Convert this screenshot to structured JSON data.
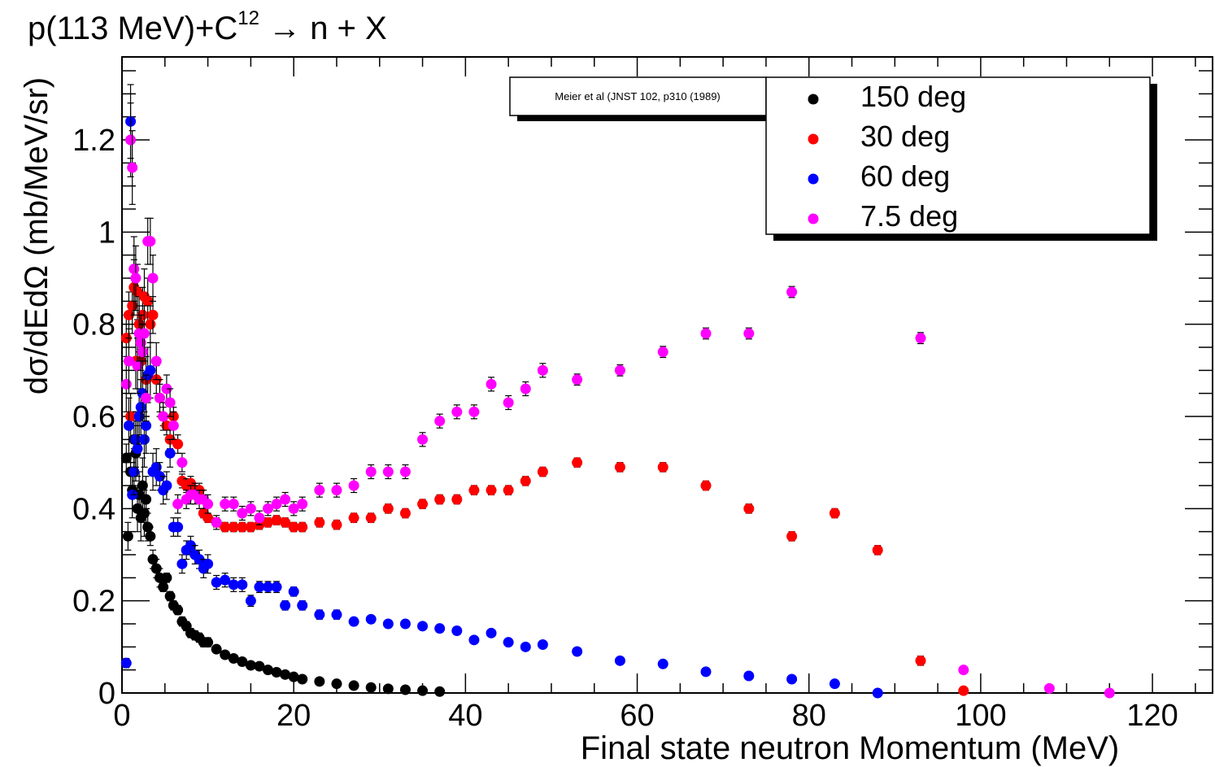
{
  "chart_data": {
    "type": "scatter",
    "title": "p(113 MeV)+C",
    "title_sup": "12",
    "title_tail": " → n + X",
    "xlabel": "Final state neutron Momentum (MeV)",
    "ylabel": "dσ/dEdΩ (mb/MeV/sr)",
    "xlim": [
      0,
      127
    ],
    "ylim": [
      0,
      1.38
    ],
    "x_ticks": [
      0,
      20,
      40,
      60,
      80,
      100,
      120
    ],
    "y_ticks": [
      0,
      0.2,
      0.4,
      0.6,
      0.8,
      1,
      1.2
    ],
    "x_tick_labels": [
      "0",
      "20",
      "40",
      "60",
      "80",
      "100",
      "120"
    ],
    "y_tick_labels": [
      "0",
      "0.2",
      "0.4",
      "0.6",
      "0.8",
      "1",
      "1.2"
    ],
    "reference": "Meier et al (JNST 102, p310 (1989)",
    "legend_position": "top-right",
    "series": [
      {
        "name": "150 deg",
        "color": "#000000",
        "points": [
          [
            0.5,
            0.51
          ],
          [
            0.7,
            0.34
          ],
          [
            1.0,
            0.48
          ],
          [
            1.2,
            0.44
          ],
          [
            1.4,
            0.55
          ],
          [
            1.6,
            0.52
          ],
          [
            1.8,
            0.4
          ],
          [
            2.0,
            0.43
          ],
          [
            2.2,
            0.38
          ],
          [
            2.4,
            0.45
          ],
          [
            2.6,
            0.39
          ],
          [
            2.8,
            0.42
          ],
          [
            3.0,
            0.36
          ],
          [
            3.3,
            0.34
          ],
          [
            3.6,
            0.29
          ],
          [
            4.0,
            0.27
          ],
          [
            4.4,
            0.25
          ],
          [
            4.8,
            0.23
          ],
          [
            5.2,
            0.25
          ],
          [
            5.6,
            0.21
          ],
          [
            6.0,
            0.19
          ],
          [
            6.5,
            0.18
          ],
          [
            7.0,
            0.155
          ],
          [
            7.5,
            0.145
          ],
          [
            8.0,
            0.13
          ],
          [
            8.5,
            0.125
          ],
          [
            9.0,
            0.12
          ],
          [
            9.5,
            0.11
          ],
          [
            10.0,
            0.11
          ],
          [
            11,
            0.095
          ],
          [
            12,
            0.083
          ],
          [
            13,
            0.075
          ],
          [
            14,
            0.068
          ],
          [
            15,
            0.06
          ],
          [
            16,
            0.058
          ],
          [
            17,
            0.05
          ],
          [
            18,
            0.045
          ],
          [
            19,
            0.04
          ],
          [
            20,
            0.035
          ],
          [
            21,
            0.03
          ],
          [
            23,
            0.025
          ],
          [
            25,
            0.02
          ],
          [
            27,
            0.016
          ],
          [
            29,
            0.012
          ],
          [
            31,
            0.009
          ],
          [
            33,
            0.007
          ],
          [
            35,
            0.005
          ],
          [
            37,
            0.003
          ]
        ],
        "errors": [
          0.03,
          0.03,
          0.04,
          0.04,
          0.06,
          0.06,
          0.05,
          0.05,
          0.05,
          0.06,
          0.05,
          0.05,
          0.03,
          0.02,
          0.02,
          0.02,
          0.02,
          0.01,
          0.01,
          0.01,
          0.01,
          0.01,
          0.01,
          0.01,
          0.01,
          0.01,
          0.01,
          0.01,
          0.01,
          0.005,
          0.005,
          0.005,
          0.005,
          0.005,
          0.005,
          0.005,
          0.005,
          0.005,
          0.005,
          0.005,
          0.003,
          0.003,
          0.003,
          0.003,
          0.003,
          0.003,
          0.003,
          0.003
        ]
      },
      {
        "name": "30 deg",
        "color": "#ff0000",
        "points": [
          [
            0.5,
            0.77
          ],
          [
            0.8,
            0.82
          ],
          [
            1.0,
            0.6
          ],
          [
            1.2,
            0.84
          ],
          [
            1.4,
            0.88
          ],
          [
            1.6,
            0.72
          ],
          [
            1.8,
            0.87
          ],
          [
            2.0,
            0.8
          ],
          [
            2.2,
            0.72
          ],
          [
            2.4,
            0.82
          ],
          [
            2.6,
            0.86
          ],
          [
            2.8,
            0.68
          ],
          [
            3.0,
            0.85
          ],
          [
            3.3,
            0.8
          ],
          [
            3.6,
            0.82
          ],
          [
            4.0,
            0.68
          ],
          [
            4.4,
            0.64
          ],
          [
            4.8,
            0.6
          ],
          [
            5.2,
            0.58
          ],
          [
            5.6,
            0.55
          ],
          [
            6.0,
            0.6
          ],
          [
            6.5,
            0.54
          ],
          [
            7.0,
            0.46
          ],
          [
            7.5,
            0.45
          ],
          [
            8.0,
            0.455
          ],
          [
            8.5,
            0.44
          ],
          [
            9.0,
            0.44
          ],
          [
            9.5,
            0.39
          ],
          [
            10.0,
            0.38
          ],
          [
            11,
            0.37
          ],
          [
            12,
            0.36
          ],
          [
            13,
            0.36
          ],
          [
            14,
            0.36
          ],
          [
            15,
            0.36
          ],
          [
            16,
            0.365
          ],
          [
            17,
            0.37
          ],
          [
            18,
            0.375
          ],
          [
            19,
            0.37
          ],
          [
            20,
            0.36
          ],
          [
            21,
            0.36
          ],
          [
            23,
            0.37
          ],
          [
            25,
            0.365
          ],
          [
            27,
            0.38
          ],
          [
            29,
            0.38
          ],
          [
            31,
            0.4
          ],
          [
            33,
            0.39
          ],
          [
            35,
            0.41
          ],
          [
            37,
            0.42
          ],
          [
            39,
            0.42
          ],
          [
            41,
            0.44
          ],
          [
            43,
            0.44
          ],
          [
            45,
            0.44
          ],
          [
            47,
            0.46
          ],
          [
            49,
            0.48
          ],
          [
            53,
            0.5
          ],
          [
            58,
            0.49
          ],
          [
            63,
            0.49
          ],
          [
            68,
            0.45
          ],
          [
            73,
            0.4
          ],
          [
            78,
            0.34
          ],
          [
            83,
            0.39
          ],
          [
            88,
            0.31
          ],
          [
            93,
            0.07
          ],
          [
            98,
            0.005
          ]
        ],
        "errors": [
          0.05,
          0.05,
          0.05,
          0.06,
          0.06,
          0.06,
          0.06,
          0.06,
          0.06,
          0.06,
          0.06,
          0.05,
          0.05,
          0.04,
          0.04,
          0.03,
          0.03,
          0.02,
          0.02,
          0.02,
          0.02,
          0.02,
          0.015,
          0.015,
          0.015,
          0.015,
          0.015,
          0.01,
          0.01,
          0.01,
          0.01,
          0.01,
          0.01,
          0.01,
          0.01,
          0.01,
          0.01,
          0.01,
          0.01,
          0.01,
          0.01,
          0.01,
          0.01,
          0.01,
          0.01,
          0.01,
          0.01,
          0.01,
          0.01,
          0.01,
          0.01,
          0.01,
          0.01,
          0.01,
          0.01,
          0.01,
          0.01,
          0.01,
          0.01,
          0.01,
          0.01,
          0.01,
          0.01,
          0.005
        ]
      },
      {
        "name": "60 deg",
        "color": "#0000ff",
        "points": [
          [
            0.5,
            0.065
          ],
          [
            0.8,
            0.58
          ],
          [
            1.0,
            1.24
          ],
          [
            1.2,
            0.43
          ],
          [
            1.4,
            0.48
          ],
          [
            1.6,
            0.55
          ],
          [
            1.8,
            0.53
          ],
          [
            2.0,
            0.6
          ],
          [
            2.2,
            0.62
          ],
          [
            2.4,
            0.65
          ],
          [
            2.6,
            0.55
          ],
          [
            2.8,
            0.58
          ],
          [
            3.0,
            0.69
          ],
          [
            3.3,
            0.7
          ],
          [
            3.6,
            0.48
          ],
          [
            4.0,
            0.49
          ],
          [
            4.4,
            0.47
          ],
          [
            4.8,
            0.44
          ],
          [
            5.2,
            0.45
          ],
          [
            5.6,
            0.52
          ],
          [
            6.0,
            0.36
          ],
          [
            6.5,
            0.36
          ],
          [
            7.0,
            0.28
          ],
          [
            7.5,
            0.31
          ],
          [
            8.0,
            0.32
          ],
          [
            8.5,
            0.3
          ],
          [
            9.0,
            0.29
          ],
          [
            9.5,
            0.27
          ],
          [
            10.0,
            0.28
          ],
          [
            11,
            0.24
          ],
          [
            12,
            0.245
          ],
          [
            13,
            0.235
          ],
          [
            14,
            0.235
          ],
          [
            15,
            0.2
          ],
          [
            16,
            0.23
          ],
          [
            17,
            0.23
          ],
          [
            18,
            0.23
          ],
          [
            19,
            0.19
          ],
          [
            20,
            0.22
          ],
          [
            21,
            0.19
          ],
          [
            23,
            0.17
          ],
          [
            25,
            0.17
          ],
          [
            27,
            0.155
          ],
          [
            29,
            0.16
          ],
          [
            31,
            0.15
          ],
          [
            33,
            0.15
          ],
          [
            35,
            0.145
          ],
          [
            37,
            0.14
          ],
          [
            39,
            0.135
          ],
          [
            41,
            0.115
          ],
          [
            43,
            0.13
          ],
          [
            45,
            0.11
          ],
          [
            47,
            0.1
          ],
          [
            49,
            0.105
          ],
          [
            53,
            0.09
          ],
          [
            58,
            0.07
          ],
          [
            63,
            0.063
          ],
          [
            68,
            0.046
          ],
          [
            73,
            0.037
          ],
          [
            78,
            0.03
          ],
          [
            83,
            0.02
          ],
          [
            88,
            0.0
          ]
        ],
        "errors": [
          0.01,
          0.06,
          0.08,
          0.05,
          0.05,
          0.06,
          0.06,
          0.06,
          0.06,
          0.07,
          0.06,
          0.06,
          0.06,
          0.06,
          0.04,
          0.04,
          0.03,
          0.03,
          0.03,
          0.03,
          0.02,
          0.02,
          0.02,
          0.02,
          0.02,
          0.02,
          0.02,
          0.02,
          0.02,
          0.015,
          0.015,
          0.015,
          0.015,
          0.012,
          0.012,
          0.012,
          0.012,
          0.01,
          0.01,
          0.01,
          0.01,
          0.01,
          0.008,
          0.008,
          0.008,
          0.008,
          0.008,
          0.008,
          0.008,
          0.006,
          0.006,
          0.006,
          0.006,
          0.006,
          0.005,
          0.005,
          0.005,
          0.004,
          0.004,
          0.003,
          0.003,
          0.002
        ]
      },
      {
        "name": "7.5 deg",
        "color": "#ff00ff",
        "points": [
          [
            0.5,
            0.67
          ],
          [
            0.8,
            0.72
          ],
          [
            1.0,
            1.2
          ],
          [
            1.2,
            1.14
          ],
          [
            1.4,
            0.92
          ],
          [
            1.6,
            0.9
          ],
          [
            1.8,
            0.71
          ],
          [
            2.0,
            0.78
          ],
          [
            2.2,
            0.76
          ],
          [
            2.4,
            0.74
          ],
          [
            2.6,
            0.78
          ],
          [
            2.8,
            0.64
          ],
          [
            3.0,
            0.98
          ],
          [
            3.3,
            0.98
          ],
          [
            3.6,
            0.9
          ],
          [
            4.0,
            0.72
          ],
          [
            4.4,
            0.64
          ],
          [
            4.8,
            0.6
          ],
          [
            5.2,
            0.66
          ],
          [
            5.6,
            0.63
          ],
          [
            6.0,
            0.58
          ],
          [
            6.5,
            0.41
          ],
          [
            7.0,
            0.5
          ],
          [
            7.5,
            0.42
          ],
          [
            8.0,
            0.43
          ],
          [
            8.5,
            0.43
          ],
          [
            9.0,
            0.42
          ],
          [
            9.5,
            0.42
          ],
          [
            10.0,
            0.41
          ],
          [
            11,
            0.37
          ],
          [
            12,
            0.41
          ],
          [
            13,
            0.41
          ],
          [
            14,
            0.39
          ],
          [
            15,
            0.4
          ],
          [
            16,
            0.38
          ],
          [
            17,
            0.4
          ],
          [
            18,
            0.41
          ],
          [
            19,
            0.42
          ],
          [
            20,
            0.4
          ],
          [
            21,
            0.41
          ],
          [
            23,
            0.44
          ],
          [
            25,
            0.44
          ],
          [
            27,
            0.45
          ],
          [
            29,
            0.48
          ],
          [
            31,
            0.48
          ],
          [
            33,
            0.48
          ],
          [
            35,
            0.55
          ],
          [
            37,
            0.59
          ],
          [
            39,
            0.61
          ],
          [
            41,
            0.61
          ],
          [
            43,
            0.67
          ],
          [
            45,
            0.63
          ],
          [
            47,
            0.66
          ],
          [
            49,
            0.7
          ],
          [
            53,
            0.68
          ],
          [
            58,
            0.7
          ],
          [
            63,
            0.74
          ],
          [
            68,
            0.78
          ],
          [
            73,
            0.78
          ],
          [
            78,
            0.87
          ],
          [
            93,
            0.77
          ],
          [
            98,
            0.05
          ],
          [
            108,
            0.01
          ],
          [
            115,
            0.0
          ]
        ],
        "errors": [
          0.06,
          0.07,
          0.08,
          0.08,
          0.07,
          0.07,
          0.06,
          0.06,
          0.06,
          0.06,
          0.06,
          0.05,
          0.05,
          0.05,
          0.05,
          0.04,
          0.04,
          0.03,
          0.03,
          0.03,
          0.03,
          0.02,
          0.02,
          0.02,
          0.02,
          0.02,
          0.02,
          0.02,
          0.02,
          0.015,
          0.015,
          0.015,
          0.015,
          0.015,
          0.015,
          0.015,
          0.015,
          0.015,
          0.015,
          0.015,
          0.015,
          0.015,
          0.015,
          0.015,
          0.015,
          0.015,
          0.015,
          0.015,
          0.015,
          0.015,
          0.015,
          0.015,
          0.015,
          0.015,
          0.012,
          0.012,
          0.012,
          0.012,
          0.012,
          0.012,
          0.012,
          0.005,
          0.005,
          0.005
        ]
      }
    ]
  }
}
